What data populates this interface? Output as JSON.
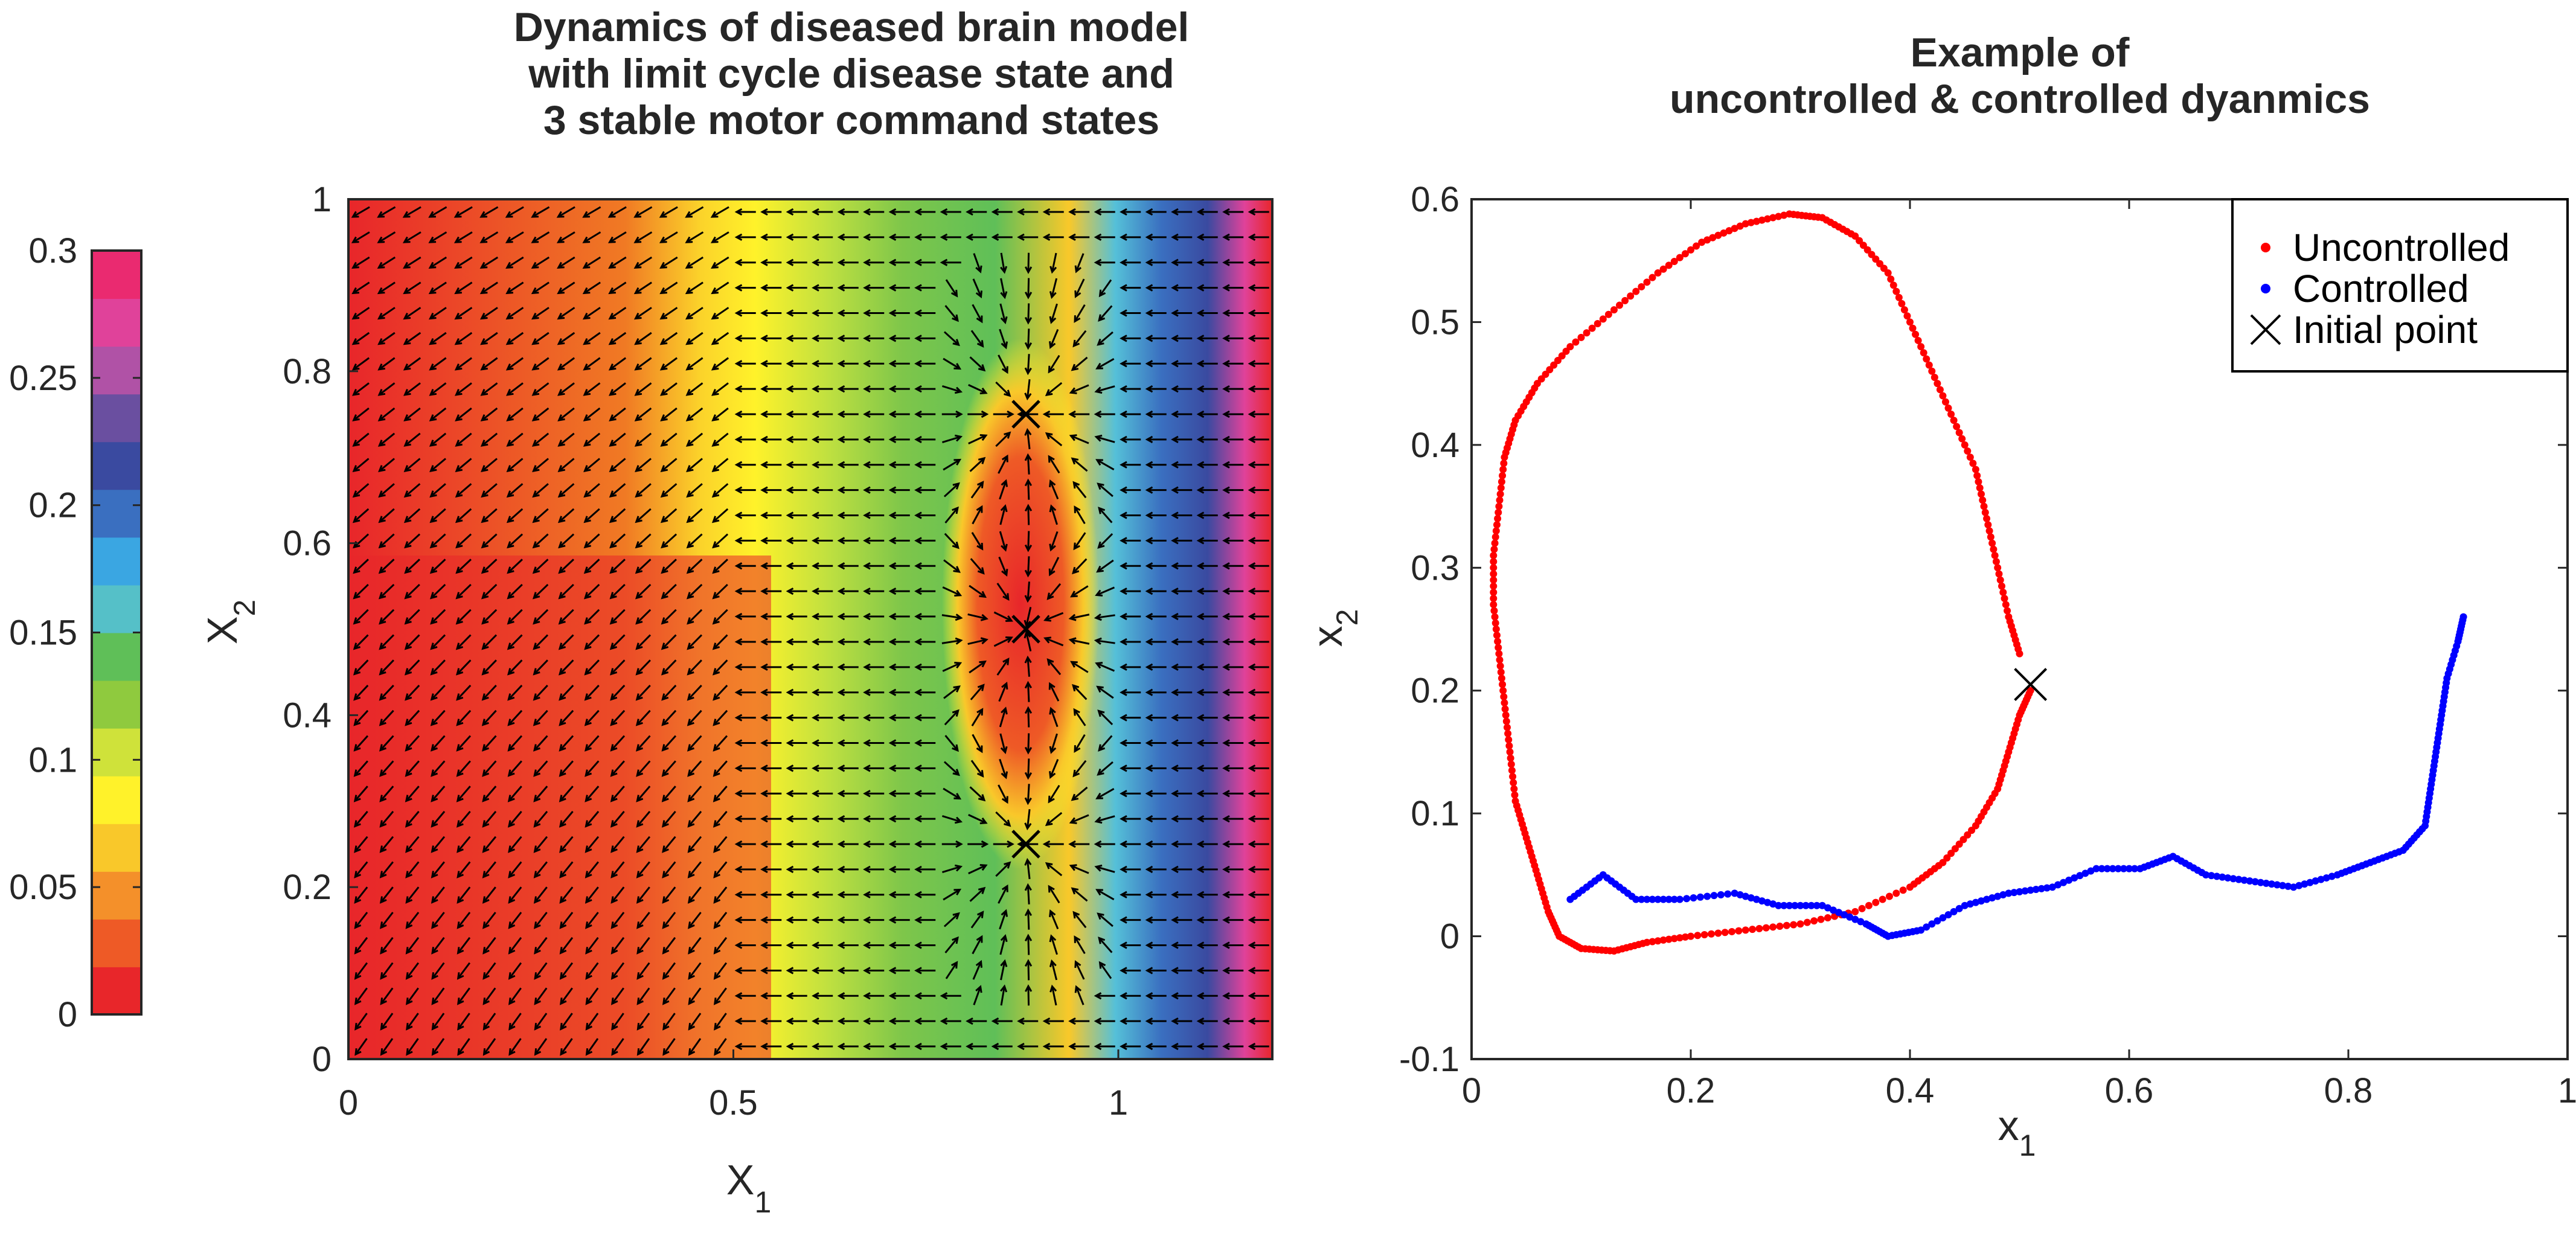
{
  "figure": {
    "left_title": [
      "Dynamics of diseased brain model",
      "with limit cycle disease state and",
      "3 stable motor command states"
    ],
    "right_title": [
      "Example of",
      "uncontrolled & controlled dyanmics"
    ]
  },
  "colorbar": {
    "range": [
      0,
      0.3
    ],
    "ticks": [
      "0",
      "0.05",
      "0.1",
      "0.15",
      "0.2",
      "0.25",
      "0.3"
    ],
    "colors": [
      "#e8262a",
      "#ee5a26",
      "#f4902a",
      "#f9c82a",
      "#fff22a",
      "#cfe23a",
      "#8fca3e",
      "#5fbf58",
      "#55c0c8",
      "#3aa6e2",
      "#3a6fc0",
      "#3a4aa0",
      "#6a4fa0",
      "#b052a6",
      "#e0429a",
      "#ea2a70"
    ]
  },
  "chart_data": [
    {
      "type": "heatmap",
      "title": "Dynamics of diseased brain model with limit cycle disease state and 3 stable motor command states",
      "xlabel": "X_1",
      "ylabel": "X_2",
      "xlim": [
        0,
        1.2
      ],
      "ylim": [
        0,
        1
      ],
      "xticks": [
        "0",
        "0.5",
        "1"
      ],
      "yticks": [
        "0",
        "0.2",
        "0.4",
        "0.6",
        "0.8",
        "1"
      ],
      "attractors": [
        {
          "x": 0.88,
          "y": 0.75
        },
        {
          "x": 0.88,
          "y": 0.5
        },
        {
          "x": 0.88,
          "y": 0.25
        }
      ],
      "overlay": "vector field (arrows)"
    },
    {
      "type": "scatter",
      "title": "Example of uncontrolled & controlled dyanmics",
      "xlabel": "x_1",
      "ylabel": "x_2",
      "xlim": [
        0,
        1
      ],
      "ylim": [
        -0.1,
        0.6
      ],
      "xticks": [
        "0",
        "0.2",
        "0.4",
        "0.6",
        "0.8",
        "1"
      ],
      "yticks": [
        "-0.1",
        "0",
        "0.1",
        "0.2",
        "0.3",
        "0.4",
        "0.5",
        "0.6"
      ],
      "legend_position": "top-right",
      "series": [
        {
          "name": "Uncontrolled",
          "color": "#ff0000",
          "points": [
            [
              0.51,
              0.2
            ],
            [
              0.5,
              0.18
            ],
            [
              0.49,
              0.15
            ],
            [
              0.48,
              0.12
            ],
            [
              0.46,
              0.09
            ],
            [
              0.43,
              0.06
            ],
            [
              0.4,
              0.04
            ],
            [
              0.35,
              0.02
            ],
            [
              0.3,
              0.01
            ],
            [
              0.25,
              0.005
            ],
            [
              0.2,
              0.0
            ],
            [
              0.16,
              -0.005
            ],
            [
              0.13,
              -0.012
            ],
            [
              0.1,
              -0.01
            ],
            [
              0.08,
              0.0
            ],
            [
              0.07,
              0.02
            ],
            [
              0.06,
              0.05
            ],
            [
              0.05,
              0.08
            ],
            [
              0.04,
              0.11
            ],
            [
              0.035,
              0.15
            ],
            [
              0.03,
              0.19
            ],
            [
              0.025,
              0.23
            ],
            [
              0.02,
              0.27
            ],
            [
              0.02,
              0.31
            ],
            [
              0.025,
              0.35
            ],
            [
              0.03,
              0.39
            ],
            [
              0.04,
              0.42
            ],
            [
              0.06,
              0.45
            ],
            [
              0.09,
              0.48
            ],
            [
              0.13,
              0.51
            ],
            [
              0.17,
              0.54
            ],
            [
              0.21,
              0.565
            ],
            [
              0.25,
              0.58
            ],
            [
              0.29,
              0.588
            ],
            [
              0.32,
              0.585
            ],
            [
              0.35,
              0.57
            ],
            [
              0.38,
              0.54
            ],
            [
              0.4,
              0.5
            ],
            [
              0.42,
              0.46
            ],
            [
              0.44,
              0.42
            ],
            [
              0.46,
              0.38
            ],
            [
              0.47,
              0.34
            ],
            [
              0.48,
              0.3
            ],
            [
              0.49,
              0.26
            ],
            [
              0.5,
              0.23
            ]
          ]
        },
        {
          "name": "Controlled",
          "color": "#0000ff",
          "points": [
            [
              0.09,
              0.03
            ],
            [
              0.12,
              0.05
            ],
            [
              0.15,
              0.03
            ],
            [
              0.19,
              0.03
            ],
            [
              0.24,
              0.035
            ],
            [
              0.28,
              0.025
            ],
            [
              0.32,
              0.025
            ],
            [
              0.36,
              0.01
            ],
            [
              0.38,
              0.0
            ],
            [
              0.41,
              0.005
            ],
            [
              0.45,
              0.025
            ],
            [
              0.49,
              0.035
            ],
            [
              0.53,
              0.04
            ],
            [
              0.57,
              0.055
            ],
            [
              0.61,
              0.055
            ],
            [
              0.64,
              0.065
            ],
            [
              0.67,
              0.05
            ],
            [
              0.71,
              0.045
            ],
            [
              0.75,
              0.04
            ],
            [
              0.79,
              0.05
            ],
            [
              0.82,
              0.06
            ],
            [
              0.85,
              0.07
            ],
            [
              0.87,
              0.09
            ],
            [
              0.875,
              0.12
            ],
            [
              0.88,
              0.15
            ],
            [
              0.885,
              0.18
            ],
            [
              0.89,
              0.21
            ],
            [
              0.9,
              0.24
            ],
            [
              0.905,
              0.26
            ]
          ]
        },
        {
          "name": "Initial point",
          "color": "#000000",
          "marker": "x",
          "points": [
            [
              0.51,
              0.205
            ]
          ]
        }
      ]
    }
  ]
}
